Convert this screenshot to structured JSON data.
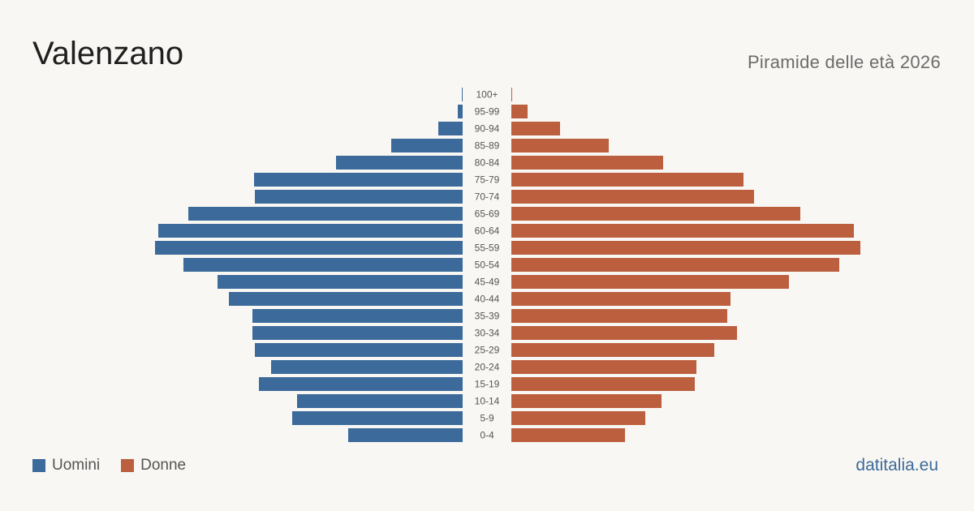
{
  "header": {
    "title": "Valenzano",
    "subtitle": "Piramide delle età 2026"
  },
  "legend": {
    "men_label": "Uomini",
    "women_label": "Donne"
  },
  "footer": {
    "brand": "datitalia.eu"
  },
  "colors": {
    "men": "#3b6a9b",
    "women": "#bb5f3e",
    "brand": "#3b6a9b"
  },
  "chart_data": {
    "type": "bar",
    "orientation": "horizontal-pyramid",
    "categories": [
      "100+",
      "95-99",
      "90-94",
      "85-89",
      "80-84",
      "75-79",
      "70-74",
      "65-69",
      "60-64",
      "55-59",
      "50-54",
      "45-49",
      "40-44",
      "35-39",
      "30-34",
      "25-29",
      "20-24",
      "15-19",
      "10-14",
      "5-9",
      "0-4"
    ],
    "series": [
      {
        "name": "Uomini",
        "values": [
          1,
          6,
          30,
          88,
          156,
          257,
          256,
          338,
          375,
          379,
          344,
          302,
          288,
          259,
          259,
          256,
          236,
          251,
          204,
          210,
          141
        ]
      },
      {
        "name": "Donne",
        "values": [
          1,
          20,
          60,
          120,
          187,
          286,
          299,
          356,
          422,
          430,
          404,
          342,
          270,
          266,
          278,
          250,
          228,
          226,
          185,
          165,
          140
        ]
      }
    ],
    "grid": false,
    "legend_position": "bottom-left"
  }
}
